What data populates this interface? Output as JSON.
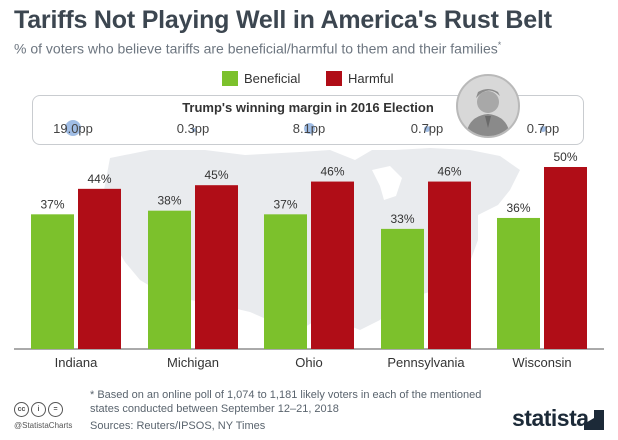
{
  "header": {
    "title": "Tariffs Not Playing Well in America's Rust Belt",
    "subtitle": "% of voters who believe tariffs are beneficial/harmful to them and their families",
    "subtitle_mark": "*"
  },
  "colors": {
    "beneficial": "#7cc12c",
    "harmful": "#b00d17",
    "bubble": "#8fb2e0",
    "map": "#e9ebee"
  },
  "margin_panel": {
    "title": "Trump's winning margin in 2016 Election",
    "values": [
      "19.0pp",
      "0.3pp",
      "8.1pp",
      "0.7pp",
      "0.7pp"
    ],
    "portrait_icon": "trump-portrait-icon"
  },
  "chart_data": {
    "type": "bar",
    "categories": [
      "Indiana",
      "Michigan",
      "Ohio",
      "Pennsylvania",
      "Wisconsin"
    ],
    "series": [
      {
        "name": "Beneficial",
        "values": [
          37,
          38,
          37,
          33,
          36
        ],
        "labels": [
          "37%",
          "38%",
          "37%",
          "33%",
          "36%"
        ]
      },
      {
        "name": "Harmful",
        "values": [
          44,
          45,
          46,
          46,
          50
        ],
        "labels": [
          "44%",
          "45%",
          "46%",
          "46%",
          "50%"
        ]
      }
    ],
    "ylim": [
      0,
      50
    ],
    "grid": false,
    "legend": "top-center"
  },
  "footer": {
    "footnote": "* Based on an online poll of 1,074 to 1,181 likely voters in each of the mentioned states conducted between September 12–21, 2018",
    "sources": "Sources: Reuters/IPSOS, NY Times",
    "handle": "@StatistaCharts",
    "brand": "statista",
    "license_icons": [
      "cc-icon",
      "by-icon",
      "nd-icon"
    ]
  }
}
